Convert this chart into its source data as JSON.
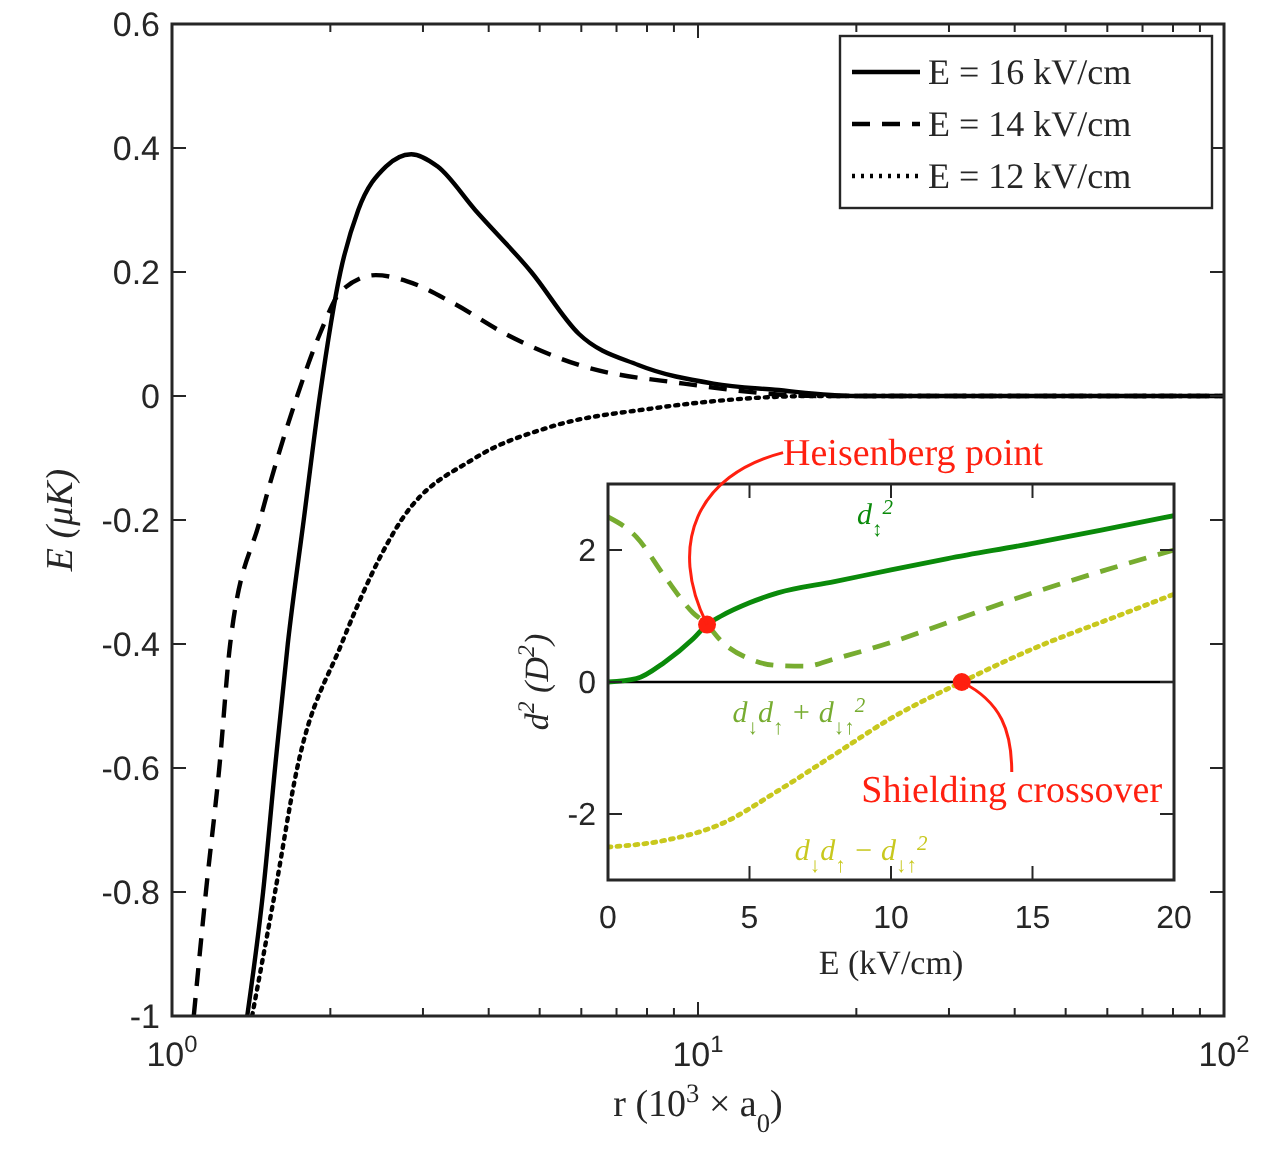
{
  "chart_data": [
    {
      "type": "line",
      "xlabel": "r (10$^{3}$ × a$_{0}$)",
      "ylabel": "E (μK)",
      "log": "x",
      "xlim": [
        1,
        100
      ],
      "ylim": [
        -1,
        0.6
      ],
      "xticks": [
        {
          "value": 1,
          "label": "10$^{0}$"
        },
        {
          "value": 2,
          "label": null
        },
        {
          "value": 3,
          "label": null
        },
        {
          "value": 4,
          "label": null
        },
        {
          "value": 5,
          "label": null
        },
        {
          "value": 6,
          "label": null
        },
        {
          "value": 7,
          "label": null
        },
        {
          "value": 8,
          "label": null
        },
        {
          "value": 9,
          "label": null
        },
        {
          "value": 10,
          "label": "10$^{1}$"
        },
        {
          "value": 20,
          "label": null
        },
        {
          "value": 30,
          "label": null
        },
        {
          "value": 40,
          "label": null
        },
        {
          "value": 50,
          "label": null
        },
        {
          "value": 60,
          "label": null
        },
        {
          "value": 70,
          "label": null
        },
        {
          "value": 80,
          "label": null
        },
        {
          "value": 90,
          "label": null
        },
        {
          "value": 100,
          "label": "10$^{2}$"
        }
      ],
      "yticks": [
        -1,
        -0.8,
        -0.6,
        -0.4,
        -0.2,
        0,
        0.2,
        0.4,
        0.6
      ],
      "grid": false,
      "legend": "top right",
      "series": [
        {
          "name": "E = 16 kV/cm",
          "color": "#000000",
          "line_style": "solid",
          "x": [
            1.39,
            1.49,
            1.57,
            1.66,
            1.78,
            1.91,
            2.09,
            2.26,
            2.55,
            2.85,
            3.2,
            3.77,
            4.82,
            5.94,
            7.7,
            10.7,
            14,
            20,
            40,
            100
          ],
          "values": [
            -1,
            -0.8,
            -0.6,
            -0.4,
            -0.2,
            0,
            0.2,
            0.3,
            0.37,
            0.39,
            0.37,
            0.3,
            0.2,
            0.1,
            0.05,
            0.02,
            0.01,
            0,
            0,
            0
          ]
        },
        {
          "name": "E = 14 kV/cm",
          "color": "#000000",
          "line_style": "dashed",
          "x": [
            1.1,
            1.16,
            1.23,
            1.29,
            1.47,
            1.73,
            1.91,
            2.1,
            2.44,
            2.8,
            3.42,
            4.31,
            5.94,
            9.4,
            17,
            40,
            100
          ],
          "values": [
            -1,
            -0.8,
            -0.6,
            -0.4,
            -0.2,
            0,
            0.1,
            0.17,
            0.195,
            0.185,
            0.15,
            0.1,
            0.05,
            0.02,
            0,
            0,
            0
          ]
        },
        {
          "name": "E = 12 kV/cm",
          "color": "#000000",
          "line_style": "dotted",
          "x": [
            1.42,
            1.57,
            1.73,
            2.1,
            2.73,
            3.77,
            5.23,
            8.2,
            17,
            40,
            100
          ],
          "values": [
            -1,
            -0.8,
            -0.6,
            -0.4,
            -0.2,
            -0.1,
            -0.05,
            -0.02,
            0,
            0,
            0
          ]
        }
      ]
    },
    {
      "type": "line",
      "xlabel": "E (kV/cm)",
      "ylabel": "d$^{2}$ (D$^{2}$)",
      "xlim": [
        0,
        20
      ],
      "ylim": [
        -3,
        3
      ],
      "xticks": [
        0,
        5,
        10,
        15,
        20
      ],
      "yticks": [
        -2,
        0,
        2
      ],
      "grid": false,
      "ref_lines": [
        {
          "axis": "y",
          "value": 0,
          "color": "#000000"
        }
      ],
      "annotations": [
        {
          "text": "Heisenberg point",
          "x": 3.5,
          "y": 0.87
        },
        {
          "text": "Shielding crossover",
          "x": 12.5,
          "y": 0
        }
      ],
      "series": [
        {
          "name": "d$_{↕}$$^{2}$",
          "color": "#0a8a0a",
          "line_style": "solid",
          "x": [
            0,
            1,
            2,
            3,
            3.5,
            4,
            5,
            6,
            8,
            10,
            12,
            15,
            18,
            20
          ],
          "values": [
            0,
            0.05,
            0.3,
            0.65,
            0.87,
            1,
            1.2,
            1.35,
            1.52,
            1.7,
            1.87,
            2.1,
            2.35,
            2.52
          ]
        },
        {
          "name": "d$_{↓}$d$_{↑}$ + d$_{↓↑}$$^{2}$",
          "color": "#77ac30",
          "line_style": "dashed",
          "x": [
            0,
            1,
            2,
            3,
            3.5,
            4,
            5,
            6,
            7,
            8,
            10,
            12,
            15,
            18,
            20
          ],
          "values": [
            2.5,
            2.2,
            1.6,
            1.05,
            0.87,
            0.62,
            0.35,
            0.25,
            0.24,
            0.35,
            0.6,
            0.9,
            1.35,
            1.75,
            2
          ]
        },
        {
          "name": "d$_{↓}$d$_{↑}$ − d$_{↓↑}$$^{2}$",
          "color": "#c8c81e",
          "line_style": "dotted",
          "x": [
            0,
            2,
            4,
            6,
            8,
            10,
            12.5,
            15,
            18,
            20
          ],
          "values": [
            -2.5,
            -2.4,
            -2.15,
            -1.65,
            -1.1,
            -0.55,
            0,
            0.5,
            1,
            1.33
          ]
        },
        {
          "type": "scatter",
          "color": "#ff2010",
          "marker": "circle",
          "x": [
            3.5,
            12.5
          ],
          "values": [
            0.87,
            0
          ]
        }
      ]
    }
  ]
}
